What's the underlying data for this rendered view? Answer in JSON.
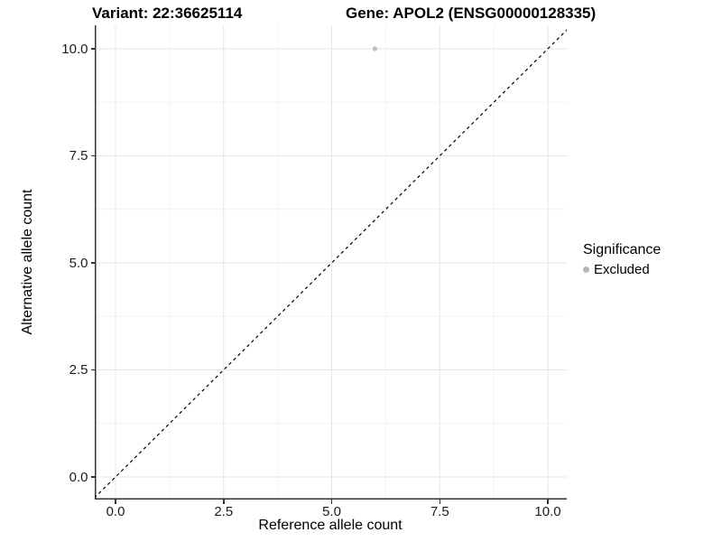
{
  "titles": {
    "variant": "Variant: 22:36625114",
    "gene": "Gene: APOL2 (ENSG00000128335)"
  },
  "axes": {
    "x": {
      "label": "Reference allele count",
      "tick_labels": [
        "0.0",
        "2.5",
        "5.0",
        "7.5",
        "10.0"
      ]
    },
    "y": {
      "label": "Alternative allele count",
      "tick_labels": [
        "0.0",
        "2.5",
        "5.0",
        "7.5",
        "10.0"
      ]
    }
  },
  "legend": {
    "title": "Significance",
    "items": [
      {
        "label": "Excluded",
        "color": "#b5b5b5"
      }
    ]
  },
  "colors": {
    "background": "#ffffff",
    "grid_major": "#e5e5e5",
    "grid_minor": "#f2f2f2",
    "axis_line": "#333333",
    "identity_line": "#000000",
    "point": "#c1c1c1",
    "text": "#000000"
  },
  "chart_data": {
    "type": "scatter",
    "titles": [
      "Variant: 22:36625114",
      "Gene: APOL2 (ENSG00000128335)"
    ],
    "xlabel": "Reference allele count",
    "ylabel": "Alternative allele count",
    "x_ticks": [
      0,
      2.5,
      5,
      7.5,
      10
    ],
    "y_ticks": [
      0,
      2.5,
      5,
      7.5,
      10
    ],
    "x_minor": [
      1.25,
      3.75,
      6.25,
      8.75
    ],
    "y_minor": [
      1.25,
      3.75,
      6.25,
      8.75
    ],
    "xlim": [
      -0.5,
      10.9
    ],
    "ylim": [
      -0.55,
      11.1
    ],
    "grid": "on",
    "legend_position": "right",
    "series": [
      {
        "name": "Excluded",
        "color": "#c1c1c1",
        "points": [
          {
            "x": 6,
            "y": 10
          }
        ]
      }
    ],
    "reference_line": {
      "type": "identity",
      "equation": "y = x",
      "style": "dashed",
      "color": "#000000"
    }
  }
}
